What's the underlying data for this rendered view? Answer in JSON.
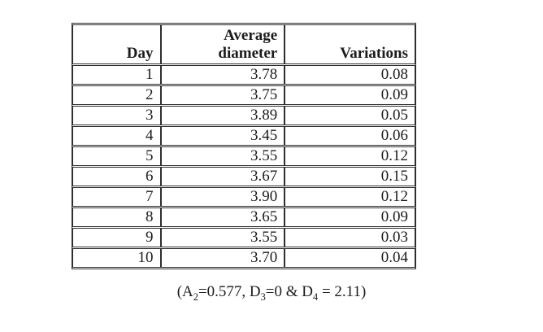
{
  "table": {
    "headers": {
      "day": "Day",
      "average_line1": "Average",
      "average_line2": "diameter",
      "variations": "Variations"
    },
    "rows": [
      [
        "1",
        "3.78",
        "0.08"
      ],
      [
        "2",
        "3.75",
        "0.09"
      ],
      [
        "3",
        "3.89",
        "0.05"
      ],
      [
        "4",
        "3.45",
        "0.06"
      ],
      [
        "5",
        "3.55",
        "0.12"
      ],
      [
        "6",
        "3.67",
        "0.15"
      ],
      [
        "7",
        "3.90",
        "0.12"
      ],
      [
        "8",
        "3.65",
        "0.09"
      ],
      [
        "9",
        "3.55",
        "0.03"
      ],
      [
        "10",
        "3.70",
        "0.04"
      ]
    ]
  },
  "note": {
    "text": "(A2=0.577, D3=0 & D4 = 2.11)",
    "parts": [
      "(A",
      "2",
      "=0.577, D",
      "3",
      "=0 & D",
      "4",
      " = 2.11)"
    ]
  },
  "colors": {
    "background": "#ffffff",
    "border": "#2e2e2e",
    "text": "#1c1c1c"
  }
}
